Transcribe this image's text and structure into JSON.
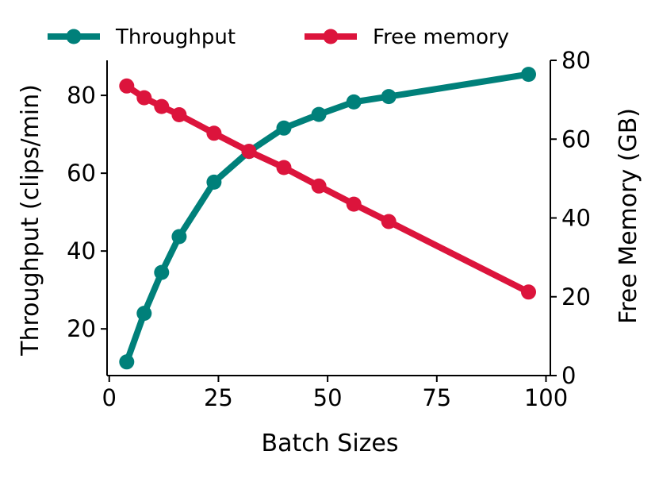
{
  "chart_data": {
    "type": "line",
    "xlabel": "Batch Sizes",
    "ylabel_left": "Throughput (clips/min)",
    "ylabel_right": "Free Memory (GB)",
    "xlim": [
      -0.5,
      101
    ],
    "ylim_left": [
      8,
      89
    ],
    "ylim_right": [
      0,
      80
    ],
    "xticks": [
      0,
      25,
      50,
      75,
      100
    ],
    "yticks_left": [
      20,
      40,
      60,
      80
    ],
    "yticks_right": [
      0,
      20,
      40,
      60,
      80
    ],
    "legend_position": "top",
    "grid": false,
    "series": [
      {
        "name": "Throughput",
        "axis": "left",
        "color": "#00807a",
        "x": [
          4,
          8,
          12,
          16,
          24,
          32,
          40,
          48,
          56,
          64,
          96
        ],
        "y": [
          11.5,
          24,
          34.5,
          43.7,
          57.7,
          65.6,
          71.6,
          75.1,
          78.3,
          79.7,
          85.4
        ]
      },
      {
        "name": "Free memory",
        "axis": "right",
        "color": "#dc143c",
        "x": [
          4,
          8,
          12,
          16,
          24,
          32,
          40,
          48,
          56,
          64,
          96
        ],
        "y": [
          73.5,
          70.5,
          68.3,
          66.2,
          61.5,
          56.9,
          52.8,
          48.1,
          43.5,
          39.1,
          21.2
        ]
      }
    ]
  }
}
